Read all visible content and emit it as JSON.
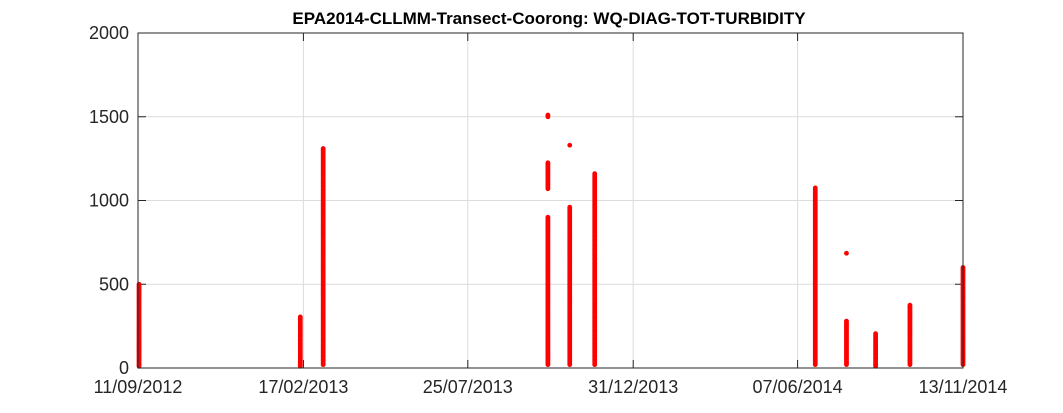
{
  "chart_data": {
    "type": "scatter",
    "title": "EPA2014-CLLMM-Transect-Coorong: WQ-DIAG-TOT-TURBIDITY",
    "xlabel": "",
    "ylabel": "",
    "xlim": [
      "2012-09-11",
      "2014-11-13"
    ],
    "ylim": [
      0,
      2000
    ],
    "x_ticks": [
      "11/09/2012",
      "17/02/2013",
      "25/07/2013",
      "31/12/2013",
      "07/06/2014",
      "13/11/2014"
    ],
    "y_ticks": [
      "0",
      "500",
      "1000",
      "1500",
      "2000"
    ],
    "grid": true,
    "marker_color": "#ff0000",
    "series": [
      {
        "points": [
          [
            "2012-09-12",
            10
          ],
          [
            "2012-09-12",
            25
          ],
          [
            "2012-09-12",
            40
          ],
          [
            "2012-09-12",
            55
          ],
          [
            "2012-09-12",
            70
          ],
          [
            "2012-09-12",
            85
          ],
          [
            "2012-09-12",
            100
          ],
          [
            "2012-09-12",
            120
          ],
          [
            "2012-09-12",
            140
          ],
          [
            "2012-09-12",
            160
          ],
          [
            "2012-09-12",
            270
          ],
          [
            "2012-09-12",
            385
          ],
          [
            "2012-09-12",
            500
          ],
          [
            "2013-02-14",
            10
          ],
          [
            "2013-02-14",
            30
          ],
          [
            "2013-02-14",
            50
          ],
          [
            "2013-02-14",
            70
          ],
          [
            "2013-02-14",
            100
          ],
          [
            "2013-02-14",
            130
          ],
          [
            "2013-02-14",
            180
          ],
          [
            "2013-02-14",
            200
          ],
          [
            "2013-02-14",
            230
          ],
          [
            "2013-02-14",
            250
          ],
          [
            "2013-02-14",
            305
          ],
          [
            "2013-03-08",
            20
          ],
          [
            "2013-03-08",
            60
          ],
          [
            "2013-03-08",
            100
          ],
          [
            "2013-03-08",
            150
          ],
          [
            "2013-03-08",
            200
          ],
          [
            "2013-03-08",
            250
          ],
          [
            "2013-03-08",
            300
          ],
          [
            "2013-03-08",
            380
          ],
          [
            "2013-03-08",
            430
          ],
          [
            "2013-03-08",
            500
          ],
          [
            "2013-03-08",
            580
          ],
          [
            "2013-03-08",
            650
          ],
          [
            "2013-03-08",
            700
          ],
          [
            "2013-03-08",
            780
          ],
          [
            "2013-03-08",
            850
          ],
          [
            "2013-03-08",
            900
          ],
          [
            "2013-03-08",
            1000
          ],
          [
            "2013-03-08",
            1050
          ],
          [
            "2013-03-08",
            1100
          ],
          [
            "2013-03-08",
            1140
          ],
          [
            "2013-03-08",
            1290
          ],
          [
            "2013-03-08",
            1310
          ],
          [
            "2013-10-10",
            20
          ],
          [
            "2013-10-10",
            80
          ],
          [
            "2013-10-10",
            150
          ],
          [
            "2013-10-10",
            220
          ],
          [
            "2013-10-10",
            300
          ],
          [
            "2013-10-10",
            380
          ],
          [
            "2013-10-10",
            450
          ],
          [
            "2013-10-10",
            520
          ],
          [
            "2013-10-10",
            600
          ],
          [
            "2013-10-10",
            680
          ],
          [
            "2013-10-10",
            750
          ],
          [
            "2013-10-10",
            830
          ],
          [
            "2013-10-10",
            900
          ],
          [
            "2013-10-10",
            1070
          ],
          [
            "2013-10-10",
            1225
          ],
          [
            "2013-10-10",
            1500
          ],
          [
            "2013-10-10",
            1510
          ],
          [
            "2013-10-31",
            20
          ],
          [
            "2013-10-31",
            100
          ],
          [
            "2013-10-31",
            200
          ],
          [
            "2013-10-31",
            300
          ],
          [
            "2013-10-31",
            400
          ],
          [
            "2013-10-31",
            500
          ],
          [
            "2013-10-31",
            600
          ],
          [
            "2013-10-31",
            700
          ],
          [
            "2013-10-31",
            760
          ],
          [
            "2013-10-31",
            830
          ],
          [
            "2013-10-31",
            960
          ],
          [
            "2013-10-31",
            1330
          ],
          [
            "2013-11-24",
            20
          ],
          [
            "2013-11-24",
            100
          ],
          [
            "2013-11-24",
            200
          ],
          [
            "2013-11-24",
            300
          ],
          [
            "2013-11-24",
            400
          ],
          [
            "2013-11-24",
            500
          ],
          [
            "2013-11-24",
            600
          ],
          [
            "2013-11-24",
            700
          ],
          [
            "2013-11-24",
            800
          ],
          [
            "2013-11-24",
            900
          ],
          [
            "2013-11-24",
            950
          ],
          [
            "2013-11-24",
            1000
          ],
          [
            "2013-11-24",
            1160
          ],
          [
            "2014-06-24",
            20
          ],
          [
            "2014-06-24",
            100
          ],
          [
            "2014-06-24",
            200
          ],
          [
            "2014-06-24",
            300
          ],
          [
            "2014-06-24",
            400
          ],
          [
            "2014-06-24",
            500
          ],
          [
            "2014-06-24",
            600
          ],
          [
            "2014-06-24",
            650
          ],
          [
            "2014-06-24",
            750
          ],
          [
            "2014-06-24",
            830
          ],
          [
            "2014-06-24",
            880
          ],
          [
            "2014-06-24",
            950
          ],
          [
            "2014-06-24",
            1000
          ],
          [
            "2014-06-24",
            1040
          ],
          [
            "2014-06-24",
            1075
          ],
          [
            "2014-07-24",
            20
          ],
          [
            "2014-07-24",
            60
          ],
          [
            "2014-07-24",
            100
          ],
          [
            "2014-07-24",
            150
          ],
          [
            "2014-07-24",
            200
          ],
          [
            "2014-07-24",
            280
          ],
          [
            "2014-07-24",
            685
          ],
          [
            "2014-08-21",
            10
          ],
          [
            "2014-08-21",
            40
          ],
          [
            "2014-08-21",
            80
          ],
          [
            "2014-08-21",
            120
          ],
          [
            "2014-08-21",
            160
          ],
          [
            "2014-08-21",
            195
          ],
          [
            "2014-08-21",
            205
          ],
          [
            "2014-09-23",
            20
          ],
          [
            "2014-09-23",
            60
          ],
          [
            "2014-09-23",
            100
          ],
          [
            "2014-09-23",
            150
          ],
          [
            "2014-09-23",
            200
          ],
          [
            "2014-09-23",
            260
          ],
          [
            "2014-09-23",
            300
          ],
          [
            "2014-09-23",
            330
          ],
          [
            "2014-09-23",
            375
          ],
          [
            "2014-11-13",
            20
          ],
          [
            "2014-11-13",
            80
          ],
          [
            "2014-11-13",
            150
          ],
          [
            "2014-11-13",
            200
          ],
          [
            "2014-11-13",
            250
          ],
          [
            "2014-11-13",
            300
          ],
          [
            "2014-11-13",
            350
          ],
          [
            "2014-11-13",
            400
          ],
          [
            "2014-11-13",
            460
          ],
          [
            "2014-11-13",
            600
          ]
        ]
      }
    ]
  }
}
